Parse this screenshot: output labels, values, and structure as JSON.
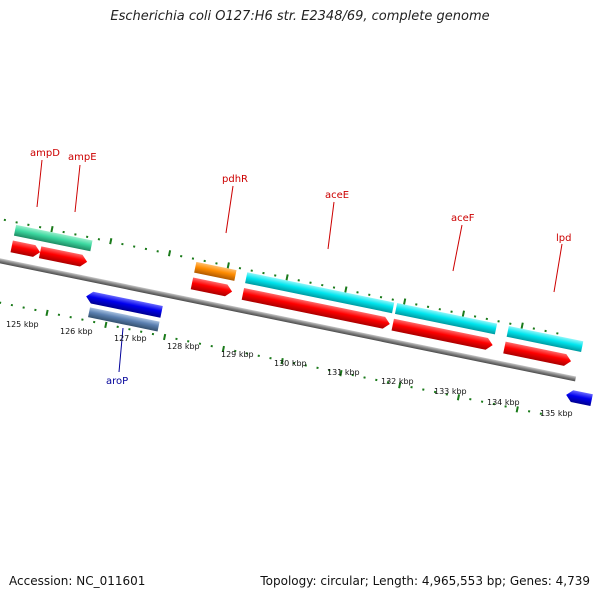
{
  "title": "Escherichia coli O127:H6 str. E2348/69, complete genome",
  "footer": {
    "accession": "Accession: NC_011601",
    "topology": "Topology: circular; Length: 4,965,553 bp; Genes: 4,739"
  },
  "scale_labels": [
    "125 kbp",
    "126 kbp",
    "127 kbp",
    "128 kbp",
    "129 kbp",
    "130 kbp",
    "131 kbp",
    "132 kbp",
    "133 kbp",
    "134 kbp",
    "135 kbp"
  ],
  "genes": [
    {
      "name": "ampD",
      "strand": "forward"
    },
    {
      "name": "ampE",
      "strand": "forward"
    },
    {
      "name": "pdhR",
      "strand": "forward"
    },
    {
      "name": "aceE",
      "strand": "forward"
    },
    {
      "name": "aceF",
      "strand": "forward"
    },
    {
      "name": "lpd",
      "strand": "forward"
    },
    {
      "name": "aroP",
      "strand": "reverse"
    }
  ],
  "colors": {
    "forward_label": "#cc0000",
    "reverse_label": "#000099",
    "tick": "#1a7a1a",
    "backbone": "#808080",
    "cds": "#ff0000",
    "gene_cyan": "#00e5ee",
    "gene_green": "#3cd8a0",
    "gene_orange": "#ff8c00",
    "gene_blue": "#0000ee",
    "gene_steel": "#5a7fb0"
  }
}
